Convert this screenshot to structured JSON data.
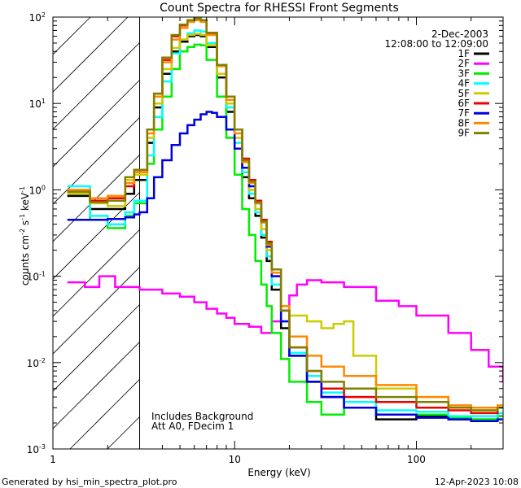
{
  "chart_data": {
    "type": "line",
    "title": "Count Spectra for RHESSI Front Segments",
    "xlabel": "Energy (keV)",
    "ylabel_main": "counts cm",
    "ylabel_exp1": "-2",
    "ylabel_mid": " s",
    "ylabel_exp2": "-1",
    "ylabel_unit": " keV",
    "ylabel_exp3": "-1",
    "x_scale": "log",
    "y_scale": "log",
    "xlim": [
      1,
      300
    ],
    "ylim": [
      0.001,
      100
    ],
    "x_tick_labels": [
      {
        "value": 1,
        "label": "1"
      },
      {
        "value": 10,
        "label": "10"
      },
      {
        "value": 100,
        "label": "100"
      }
    ],
    "y_tick_labels": [
      {
        "value": 100,
        "base": "10",
        "exp": "2"
      },
      {
        "value": 10,
        "base": "10",
        "exp": "1"
      },
      {
        "value": 1,
        "base": "10",
        "exp": "0"
      },
      {
        "value": 0.1,
        "base": "10",
        "exp": "-1"
      },
      {
        "value": 0.01,
        "base": "10",
        "exp": "-2"
      },
      {
        "value": 0.001,
        "base": "10",
        "exp": "-3"
      }
    ],
    "date": "2-Dec-2003",
    "time_range": "12:08:00 to 12:09:00",
    "shaded_region_max_keV": 3,
    "annotations": [
      "Includes Background",
      "Att A0, FDecim 1"
    ],
    "footer_left": "Generated by hsi_min_spectra_plot.pro",
    "footer_right": "12-Apr-2023 10:08",
    "series": [
      {
        "name": "1F",
        "color": "#000000",
        "points": [
          [
            1.2,
            0.85
          ],
          [
            1.6,
            0.6
          ],
          [
            2.0,
            0.6
          ],
          [
            2.5,
            0.9
          ],
          [
            2.8,
            1.3
          ],
          [
            3.0,
            1.3
          ],
          [
            3.3,
            3.5
          ],
          [
            3.6,
            9
          ],
          [
            4.0,
            22
          ],
          [
            4.5,
            40
          ],
          [
            5.0,
            52
          ],
          [
            5.5,
            60
          ],
          [
            6.0,
            62
          ],
          [
            6.5,
            60
          ],
          [
            7.0,
            45
          ],
          [
            8.0,
            20
          ],
          [
            9.0,
            8
          ],
          [
            10,
            3
          ],
          [
            11,
            1.4
          ],
          [
            12,
            0.8
          ],
          [
            13,
            0.5
          ],
          [
            14,
            0.28
          ],
          [
            15,
            0.15
          ],
          [
            16,
            0.07
          ],
          [
            18,
            0.025
          ],
          [
            20,
            0.012
          ],
          [
            25,
            0.006
          ],
          [
            30,
            0.004
          ],
          [
            40,
            0.003
          ],
          [
            60,
            0.0022
          ],
          [
            100,
            0.0024
          ],
          [
            150,
            0.0022
          ],
          [
            200,
            0.0022
          ],
          [
            280,
            0.0024
          ]
        ]
      },
      {
        "name": "2F",
        "color": "#ff00ff",
        "points": [
          [
            1.2,
            0.085
          ],
          [
            1.5,
            0.075
          ],
          [
            1.8,
            0.1
          ],
          [
            2.2,
            0.075
          ],
          [
            3.0,
            0.07
          ],
          [
            4,
            0.063
          ],
          [
            5,
            0.058
          ],
          [
            6,
            0.05
          ],
          [
            7,
            0.042
          ],
          [
            8,
            0.037
          ],
          [
            9,
            0.033
          ],
          [
            10,
            0.028
          ],
          [
            12,
            0.026
          ],
          [
            14,
            0.022
          ],
          [
            16,
            0.03
          ],
          [
            18,
            0.04
          ],
          [
            20,
            0.06
          ],
          [
            22,
            0.08
          ],
          [
            25,
            0.09
          ],
          [
            30,
            0.085
          ],
          [
            40,
            0.075
          ],
          [
            60,
            0.052
          ],
          [
            80,
            0.045
          ],
          [
            100,
            0.035
          ],
          [
            150,
            0.022
          ],
          [
            200,
            0.014
          ],
          [
            250,
            0.009
          ],
          [
            300,
            0.006
          ]
        ]
      },
      {
        "name": "3F",
        "color": "#00ee00",
        "points": [
          [
            1.2,
            0.9
          ],
          [
            1.6,
            0.45
          ],
          [
            2.0,
            0.36
          ],
          [
            2.5,
            0.5
          ],
          [
            2.8,
            0.7
          ],
          [
            3.0,
            0.7
          ],
          [
            3.3,
            2
          ],
          [
            3.6,
            5
          ],
          [
            4.0,
            12
          ],
          [
            4.5,
            25
          ],
          [
            5.0,
            40
          ],
          [
            5.5,
            45
          ],
          [
            6.0,
            48
          ],
          [
            6.5,
            47
          ],
          [
            7.0,
            32
          ],
          [
            8.0,
            12
          ],
          [
            9.0,
            4
          ],
          [
            10,
            1.5
          ],
          [
            11,
            0.6
          ],
          [
            12,
            0.3
          ],
          [
            13,
            0.15
          ],
          [
            14,
            0.08
          ],
          [
            15,
            0.045
          ],
          [
            16,
            0.022
          ],
          [
            18,
            0.011
          ],
          [
            20,
            0.006
          ],
          [
            25,
            0.0035
          ],
          [
            30,
            0.0025
          ],
          [
            40,
            0.003
          ],
          [
            60,
            0.0025
          ],
          [
            100,
            0.0025
          ],
          [
            150,
            0.0023
          ],
          [
            200,
            0.0022
          ],
          [
            280,
            0.0024
          ]
        ]
      },
      {
        "name": "4F",
        "color": "#00ffff",
        "points": [
          [
            1.2,
            1.1
          ],
          [
            1.6,
            0.5
          ],
          [
            2.0,
            0.4
          ],
          [
            2.5,
            0.55
          ],
          [
            2.8,
            0.75
          ],
          [
            3.0,
            0.75
          ],
          [
            3.3,
            2.5
          ],
          [
            3.6,
            7
          ],
          [
            4.0,
            18
          ],
          [
            4.5,
            38
          ],
          [
            5.0,
            55
          ],
          [
            5.5,
            65
          ],
          [
            6.0,
            70
          ],
          [
            6.5,
            68
          ],
          [
            7.0,
            50
          ],
          [
            8.0,
            22
          ],
          [
            9.0,
            9
          ],
          [
            10,
            3.5
          ],
          [
            11,
            1.6
          ],
          [
            12,
            0.9
          ],
          [
            13,
            0.55
          ],
          [
            14,
            0.3
          ],
          [
            15,
            0.17
          ],
          [
            16,
            0.08
          ],
          [
            18,
            0.03
          ],
          [
            20,
            0.013
          ],
          [
            25,
            0.007
          ],
          [
            30,
            0.0045
          ],
          [
            40,
            0.0035
          ],
          [
            60,
            0.0028
          ],
          [
            100,
            0.0027
          ],
          [
            150,
            0.0024
          ],
          [
            200,
            0.0024
          ],
          [
            280,
            0.0026
          ]
        ]
      },
      {
        "name": "5F",
        "color": "#cccc00",
        "points": [
          [
            1.2,
            0.9
          ],
          [
            1.6,
            0.7
          ],
          [
            2.0,
            0.65
          ],
          [
            2.5,
            1.3
          ],
          [
            2.8,
            1.5
          ],
          [
            3.0,
            1.5
          ],
          [
            3.3,
            4
          ],
          [
            3.6,
            10
          ],
          [
            4.0,
            25
          ],
          [
            4.5,
            44
          ],
          [
            5.0,
            55
          ],
          [
            5.5,
            62
          ],
          [
            6.0,
            64
          ],
          [
            6.5,
            62
          ],
          [
            7.0,
            47
          ],
          [
            8.0,
            22
          ],
          [
            9.0,
            10
          ],
          [
            10,
            4
          ],
          [
            11,
            1.8
          ],
          [
            12,
            1.0
          ],
          [
            13,
            0.6
          ],
          [
            14,
            0.35
          ],
          [
            15,
            0.2
          ],
          [
            16,
            0.1
          ],
          [
            18,
            0.045
          ],
          [
            20,
            0.035
          ],
          [
            25,
            0.03
          ],
          [
            30,
            0.025
          ],
          [
            35,
            0.028
          ],
          [
            40,
            0.03
          ],
          [
            45,
            0.012
          ],
          [
            60,
            0.005
          ],
          [
            100,
            0.004
          ],
          [
            150,
            0.003
          ],
          [
            200,
            0.0028
          ],
          [
            280,
            0.003
          ]
        ]
      },
      {
        "name": "6F",
        "color": "#ee0000",
        "points": [
          [
            1.2,
            0.95
          ],
          [
            1.6,
            0.75
          ],
          [
            2.0,
            0.8
          ],
          [
            2.5,
            1.1
          ],
          [
            2.8,
            1.7
          ],
          [
            3.0,
            1.7
          ],
          [
            3.3,
            5
          ],
          [
            3.6,
            13
          ],
          [
            4.0,
            32
          ],
          [
            4.5,
            60
          ],
          [
            5.0,
            80
          ],
          [
            5.5,
            90
          ],
          [
            6.0,
            95
          ],
          [
            6.5,
            90
          ],
          [
            7.0,
            65
          ],
          [
            8.0,
            28
          ],
          [
            9.0,
            12
          ],
          [
            10,
            5
          ],
          [
            11,
            2.3
          ],
          [
            12,
            1.3
          ],
          [
            13,
            0.75
          ],
          [
            14,
            0.45
          ],
          [
            15,
            0.25
          ],
          [
            16,
            0.12
          ],
          [
            18,
            0.04
          ],
          [
            20,
            0.015
          ],
          [
            25,
            0.008
          ],
          [
            30,
            0.005
          ],
          [
            40,
            0.004
          ],
          [
            60,
            0.0035
          ],
          [
            100,
            0.003
          ],
          [
            150,
            0.0028
          ],
          [
            200,
            0.0026
          ],
          [
            280,
            0.003
          ]
        ]
      },
      {
        "name": "7F",
        "color": "#0000dd",
        "points": [
          [
            1.2,
            0.45
          ],
          [
            1.6,
            0.45
          ],
          [
            2.0,
            0.46
          ],
          [
            2.5,
            0.48
          ],
          [
            2.8,
            0.52
          ],
          [
            3.0,
            0.55
          ],
          [
            3.3,
            0.8
          ],
          [
            3.6,
            1.4
          ],
          [
            4.0,
            2.2
          ],
          [
            4.5,
            3.3
          ],
          [
            5.0,
            4.5
          ],
          [
            5.5,
            5.6
          ],
          [
            6.0,
            6.5
          ],
          [
            6.5,
            7.5
          ],
          [
            7.0,
            8
          ],
          [
            7.5,
            7.8
          ],
          [
            8.0,
            7
          ],
          [
            9.0,
            5
          ],
          [
            10,
            3
          ],
          [
            11,
            1.8
          ],
          [
            12,
            1.1
          ],
          [
            13,
            0.7
          ],
          [
            14,
            0.42
          ],
          [
            15,
            0.22
          ],
          [
            16,
            0.1
          ],
          [
            18,
            0.03
          ],
          [
            20,
            0.012
          ],
          [
            25,
            0.006
          ],
          [
            30,
            0.004
          ],
          [
            40,
            0.003
          ],
          [
            60,
            0.0025
          ],
          [
            100,
            0.0023
          ],
          [
            150,
            0.0022
          ],
          [
            200,
            0.0021
          ],
          [
            280,
            0.0022
          ]
        ]
      },
      {
        "name": "8F",
        "color": "#ff8800",
        "points": [
          [
            1.2,
            1.0
          ],
          [
            1.6,
            0.8
          ],
          [
            2.0,
            0.85
          ],
          [
            2.5,
            1.2
          ],
          [
            2.8,
            1.6
          ],
          [
            3.0,
            1.6
          ],
          [
            3.3,
            4.5
          ],
          [
            3.6,
            12
          ],
          [
            4.0,
            30
          ],
          [
            4.5,
            55
          ],
          [
            5.0,
            75
          ],
          [
            5.5,
            88
          ],
          [
            6.0,
            92
          ],
          [
            6.5,
            88
          ],
          [
            7.0,
            62
          ],
          [
            8.0,
            27
          ],
          [
            9.0,
            11
          ],
          [
            10,
            4.5
          ],
          [
            11,
            2.1
          ],
          [
            12,
            1.2
          ],
          [
            13,
            0.7
          ],
          [
            14,
            0.42
          ],
          [
            15,
            0.23
          ],
          [
            16,
            0.11
          ],
          [
            18,
            0.045
          ],
          [
            20,
            0.02
          ],
          [
            25,
            0.012
          ],
          [
            30,
            0.009
          ],
          [
            40,
            0.007
          ],
          [
            60,
            0.0055
          ],
          [
            100,
            0.004
          ],
          [
            150,
            0.0032
          ],
          [
            200,
            0.003
          ],
          [
            280,
            0.0032
          ]
        ]
      },
      {
        "name": "9F",
        "color": "#808000",
        "points": [
          [
            1.2,
            0.95
          ],
          [
            1.6,
            0.72
          ],
          [
            2.0,
            0.75
          ],
          [
            2.5,
            1.4
          ],
          [
            2.8,
            1.7
          ],
          [
            3.0,
            1.7
          ],
          [
            3.3,
            5
          ],
          [
            3.6,
            13
          ],
          [
            4.0,
            34
          ],
          [
            4.5,
            62
          ],
          [
            5.0,
            82
          ],
          [
            5.5,
            92
          ],
          [
            6.0,
            96
          ],
          [
            6.5,
            92
          ],
          [
            7.0,
            66
          ],
          [
            8.0,
            28
          ],
          [
            9.0,
            12
          ],
          [
            10,
            5
          ],
          [
            11,
            2.2
          ],
          [
            12,
            1.25
          ],
          [
            13,
            0.72
          ],
          [
            14,
            0.43
          ],
          [
            15,
            0.24
          ],
          [
            16,
            0.12
          ],
          [
            18,
            0.04
          ],
          [
            20,
            0.015
          ],
          [
            25,
            0.008
          ],
          [
            30,
            0.006
          ],
          [
            40,
            0.005
          ],
          [
            60,
            0.004
          ],
          [
            100,
            0.0035
          ],
          [
            150,
            0.003
          ],
          [
            200,
            0.0028
          ],
          [
            280,
            0.003
          ]
        ]
      }
    ]
  }
}
